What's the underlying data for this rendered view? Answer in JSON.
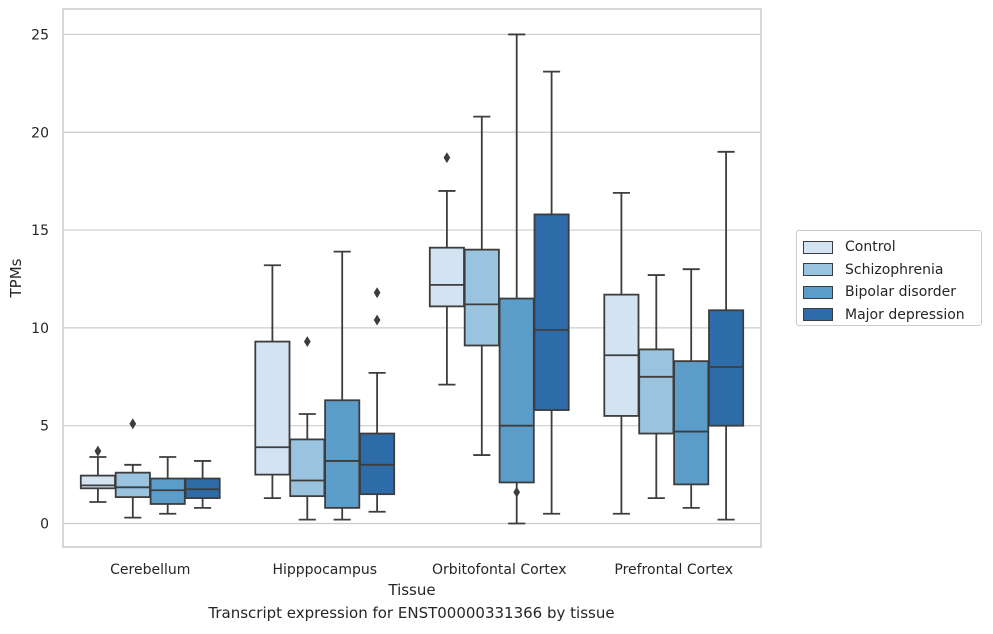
{
  "chart_data": {
    "type": "box",
    "caption": "Transcript expression for ENST00000331366 by tissue",
    "xlabel": "Tissue",
    "ylabel": "TPMs",
    "ylim": [
      -1.2,
      26.3
    ],
    "yticks": [
      0,
      5,
      10,
      15,
      20,
      25
    ],
    "grid": "horizontal",
    "legend_position": "right",
    "categories": [
      "Cerebellum",
      "Hipppocampus",
      "Orbitofontal Cortex",
      "Prefrontal Cortex"
    ],
    "series": [
      {
        "name": "Control",
        "color": "#d3e3f2",
        "boxes": [
          {
            "min": 1.1,
            "q1": 1.8,
            "median": 1.95,
            "q3": 2.45,
            "max": 3.4,
            "outliers": [
              3.7
            ]
          },
          {
            "min": 1.3,
            "q1": 2.5,
            "median": 3.9,
            "q3": 9.3,
            "max": 13.2,
            "outliers": []
          },
          {
            "min": 7.1,
            "q1": 11.1,
            "median": 12.2,
            "q3": 14.1,
            "max": 17.0,
            "outliers": [
              18.7
            ]
          },
          {
            "min": 0.5,
            "q1": 5.5,
            "median": 8.6,
            "q3": 11.7,
            "max": 16.9,
            "outliers": []
          }
        ]
      },
      {
        "name": "Schizophrenia",
        "color": "#99c3de",
        "boxes": [
          {
            "min": 0.3,
            "q1": 1.35,
            "median": 1.85,
            "q3": 2.6,
            "max": 3.0,
            "outliers": [
              5.1
            ]
          },
          {
            "min": 0.2,
            "q1": 1.4,
            "median": 2.2,
            "q3": 4.3,
            "max": 5.6,
            "outliers": [
              9.3
            ]
          },
          {
            "min": 3.5,
            "q1": 9.1,
            "median": 11.2,
            "q3": 14.0,
            "max": 20.8,
            "outliers": []
          },
          {
            "min": 1.3,
            "q1": 4.6,
            "median": 7.5,
            "q3": 8.9,
            "max": 12.7,
            "outliers": []
          }
        ]
      },
      {
        "name": "Bipolar disorder",
        "color": "#5b9cc8",
        "boxes": [
          {
            "min": 0.5,
            "q1": 1.0,
            "median": 1.7,
            "q3": 2.3,
            "max": 3.4,
            "outliers": []
          },
          {
            "min": 0.2,
            "q1": 0.8,
            "median": 3.2,
            "q3": 6.3,
            "max": 13.9,
            "outliers": []
          },
          {
            "min": 0.0,
            "q1": 2.1,
            "median": 5.0,
            "q3": 11.5,
            "max": 25.0,
            "outliers": [
              1.6
            ]
          },
          {
            "min": 0.8,
            "q1": 2.0,
            "median": 4.7,
            "q3": 8.3,
            "max": 13.0,
            "outliers": []
          }
        ]
      },
      {
        "name": "Major depression",
        "color": "#2d6ba9",
        "boxes": [
          {
            "min": 0.8,
            "q1": 1.3,
            "median": 1.75,
            "q3": 2.3,
            "max": 3.2,
            "outliers": []
          },
          {
            "min": 0.6,
            "q1": 1.5,
            "median": 3.0,
            "q3": 4.6,
            "max": 7.7,
            "outliers": [
              10.4,
              11.8
            ]
          },
          {
            "min": 0.5,
            "q1": 5.8,
            "median": 9.9,
            "q3": 15.8,
            "max": 23.1,
            "outliers": []
          },
          {
            "min": 0.2,
            "q1": 5.0,
            "median": 8.0,
            "q3": 10.9,
            "max": 19.0,
            "outliers": []
          }
        ]
      }
    ]
  }
}
